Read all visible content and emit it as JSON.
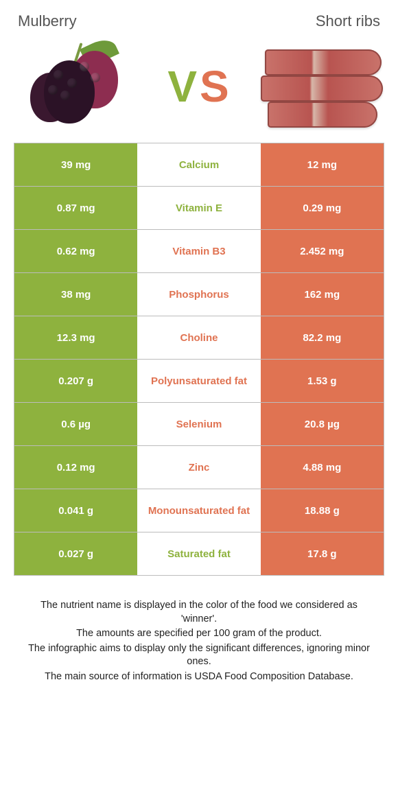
{
  "colors": {
    "left": "#8eb23e",
    "right": "#e07352",
    "mid_bg": "#ffffff",
    "left_text": "#ffffff",
    "right_text": "#ffffff",
    "label_left": "#8eb23e",
    "label_right": "#e07352"
  },
  "header": {
    "left": "Mulberry",
    "right": "Short ribs",
    "vs_v": "V",
    "vs_s": "S"
  },
  "rows": [
    {
      "left": "39 mg",
      "label": "Calcium",
      "right": "12 mg",
      "winner": "left"
    },
    {
      "left": "0.87 mg",
      "label": "Vitamin E",
      "right": "0.29 mg",
      "winner": "left"
    },
    {
      "left": "0.62 mg",
      "label": "Vitamin B3",
      "right": "2.452 mg",
      "winner": "right"
    },
    {
      "left": "38 mg",
      "label": "Phosphorus",
      "right": "162 mg",
      "winner": "right"
    },
    {
      "left": "12.3 mg",
      "label": "Choline",
      "right": "82.2 mg",
      "winner": "right"
    },
    {
      "left": "0.207 g",
      "label": "Polyunsaturated fat",
      "right": "1.53 g",
      "winner": "right"
    },
    {
      "left": "0.6 µg",
      "label": "Selenium",
      "right": "20.8 µg",
      "winner": "right"
    },
    {
      "left": "0.12 mg",
      "label": "Zinc",
      "right": "4.88 mg",
      "winner": "right"
    },
    {
      "left": "0.041 g",
      "label": "Monounsaturated fat",
      "right": "18.88 g",
      "winner": "right"
    },
    {
      "left": "0.027 g",
      "label": "Saturated fat",
      "right": "17.8 g",
      "winner": "left"
    }
  ],
  "footnote": [
    "The nutrient name is displayed in the color of the food we considered as 'winner'.",
    "The amounts are specified per 100 gram of the product.",
    "The infographic aims to display only the significant differences, ignoring minor ones.",
    "The main source of information is USDA Food Composition Database."
  ]
}
